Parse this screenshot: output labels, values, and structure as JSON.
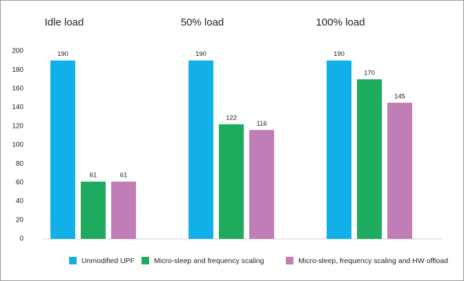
{
  "chart_data": {
    "type": "bar",
    "categories": [
      "Idle load",
      "50% load",
      "100% load"
    ],
    "series": [
      {
        "name": "Unmodified UPF",
        "color": "#12b0e8",
        "values": [
          190,
          190,
          190
        ]
      },
      {
        "name": "Micro-sleep and frequency scaling",
        "color": "#1fab5e",
        "values": [
          61,
          122,
          170
        ]
      },
      {
        "name": "Micro-sleep, frequency scaling and HW offload",
        "color": "#c07db6",
        "values": [
          61,
          116,
          145
        ]
      }
    ],
    "ylim": [
      0,
      200
    ],
    "yticks": [
      0,
      20,
      40,
      60,
      80,
      100,
      120,
      140,
      160,
      180,
      200
    ],
    "grid": false,
    "legend": "bottom"
  }
}
